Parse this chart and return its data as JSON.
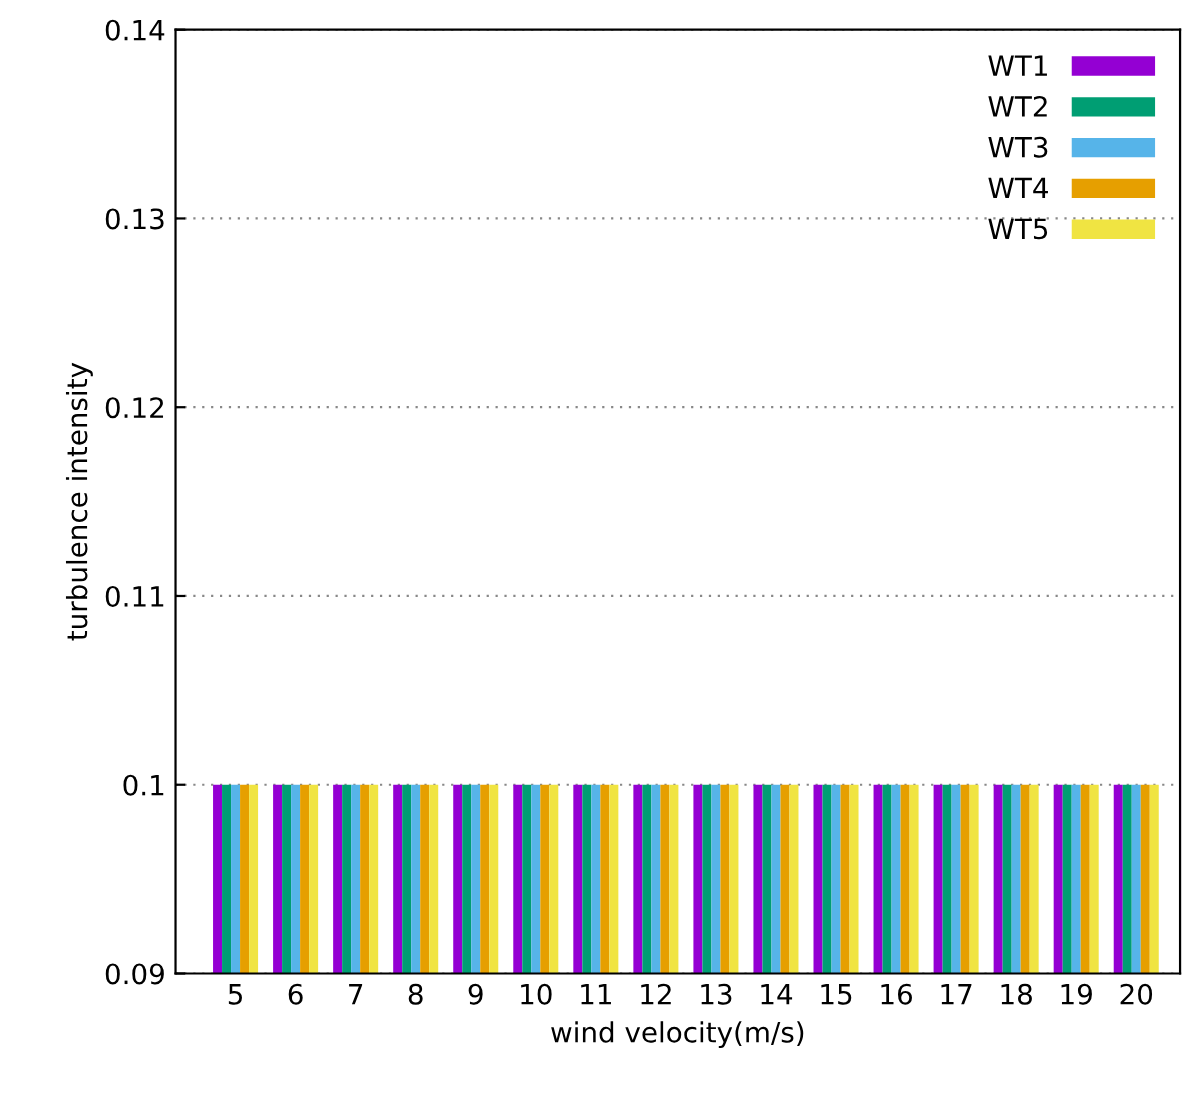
{
  "chart_data": {
    "type": "bar",
    "xlabel": "wind velocity(m/s)",
    "ylabel": "turbulence intensity",
    "categories": [
      "5",
      "6",
      "7",
      "8",
      "9",
      "10",
      "11",
      "12",
      "13",
      "14",
      "15",
      "16",
      "17",
      "18",
      "19",
      "20"
    ],
    "series": [
      {
        "name": "WT1",
        "color": "#9400d3",
        "values": [
          0.1,
          0.1,
          0.1,
          0.1,
          0.1,
          0.1,
          0.1,
          0.1,
          0.1,
          0.1,
          0.1,
          0.1,
          0.1,
          0.1,
          0.1,
          0.1
        ]
      },
      {
        "name": "WT2",
        "color": "#009e73",
        "values": [
          0.1,
          0.1,
          0.1,
          0.1,
          0.1,
          0.1,
          0.1,
          0.1,
          0.1,
          0.1,
          0.1,
          0.1,
          0.1,
          0.1,
          0.1,
          0.1
        ]
      },
      {
        "name": "WT3",
        "color": "#56b4e9",
        "values": [
          0.1,
          0.1,
          0.1,
          0.1,
          0.1,
          0.1,
          0.1,
          0.1,
          0.1,
          0.1,
          0.1,
          0.1,
          0.1,
          0.1,
          0.1,
          0.1
        ]
      },
      {
        "name": "WT4",
        "color": "#e69f00",
        "values": [
          0.1,
          0.1,
          0.1,
          0.1,
          0.1,
          0.1,
          0.1,
          0.1,
          0.1,
          0.1,
          0.1,
          0.1,
          0.1,
          0.1,
          0.1,
          0.1
        ]
      },
      {
        "name": "WT5",
        "color": "#f0e442",
        "values": [
          0.1,
          0.1,
          0.1,
          0.1,
          0.1,
          0.1,
          0.1,
          0.1,
          0.1,
          0.1,
          0.1,
          0.1,
          0.1,
          0.1,
          0.1,
          0.1
        ]
      }
    ],
    "ylim": [
      0.09,
      0.14
    ],
    "yticks": [
      0.09,
      0.1,
      0.11,
      0.12,
      0.13,
      0.14
    ],
    "grid": "y",
    "legend": "top right"
  }
}
